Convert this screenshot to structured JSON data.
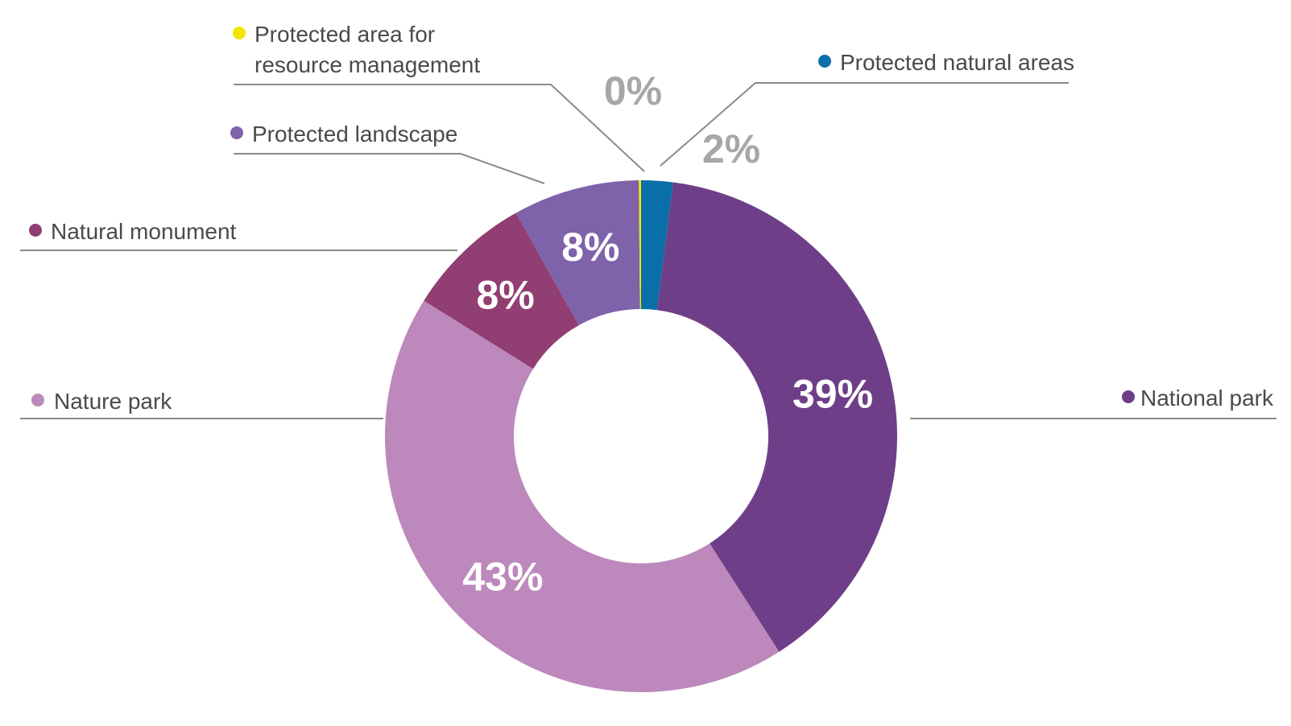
{
  "chart_data": {
    "type": "pie",
    "style": "donut",
    "title": "",
    "unit": "%",
    "start_angle": "12 o'clock",
    "direction": "clockwise",
    "slices": [
      {
        "name": "Protected natural areas",
        "value": 2,
        "label": "2%",
        "color": "#0a6fa9",
        "label_position": "outside"
      },
      {
        "name": "National park",
        "value": 39,
        "label": "39%",
        "color": "#6e3f88",
        "label_position": "inside"
      },
      {
        "name": "Nature park",
        "value": 43,
        "label": "43%",
        "color": "#bd88bb",
        "label_position": "inside"
      },
      {
        "name": "Natural monument",
        "value": 8,
        "label": "8%",
        "color": "#913e72",
        "label_position": "inside"
      },
      {
        "name": "Protected landscape",
        "value": 8,
        "label": "8%",
        "color": "#7e62aa",
        "label_position": "inside"
      },
      {
        "name": "Protected area for resource management",
        "value": 0,
        "label": "0%",
        "color": "#f2e600",
        "label_position": "outside"
      }
    ],
    "legend": {
      "placement": "around chart with leader lines",
      "entries": [
        {
          "lines": [
            "Protected area for",
            "resource management"
          ],
          "color": "#f2e600"
        },
        {
          "lines": [
            "Protected natural areas"
          ],
          "color": "#0a6fa9"
        },
        {
          "lines": [
            "Protected landscape"
          ],
          "color": "#7e62aa"
        },
        {
          "lines": [
            "Natural monument"
          ],
          "color": "#913e72"
        },
        {
          "lines": [
            "Nature park"
          ],
          "color": "#bd88bb"
        },
        {
          "lines": [
            "National park"
          ],
          "color": "#6e3f88"
        }
      ]
    },
    "colors": {
      "leader_line": "#8a8a8a",
      "inside_label": "#ffffff",
      "outside_label": "#a7a7a7",
      "legend_text": "#4a4a4a"
    }
  }
}
